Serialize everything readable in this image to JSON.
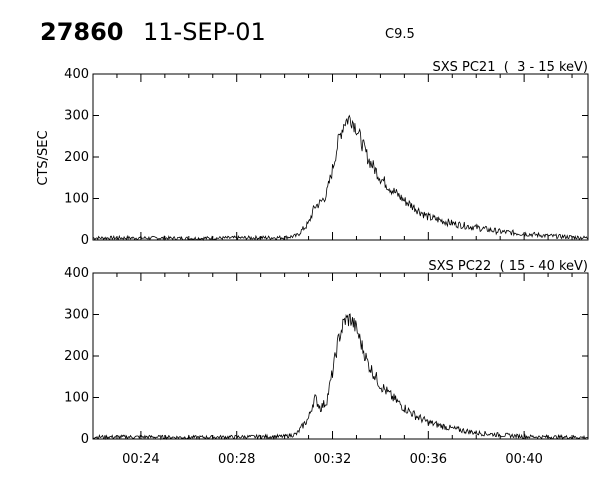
{
  "header": {
    "event_id": "27860",
    "date": "11-SEP-01",
    "goes_class": "C9.5"
  },
  "chart_data": [
    {
      "type": "line",
      "title": "SXS PC21  (  3 - 15 keV)",
      "xlabel": "",
      "ylabel": "CTS/SEC",
      "xlim": [
        "00:22:00",
        "00:42:40"
      ],
      "ylim": [
        0,
        400
      ],
      "yticks": [
        0,
        100,
        200,
        300,
        400
      ],
      "xticks": [
        "00:24",
        "00:28",
        "00:32",
        "00:36",
        "00:40"
      ],
      "series": [
        {
          "x": [
            "00:22:00",
            "00:24:00",
            "00:26:00",
            "00:28:00",
            "00:30:00",
            "00:30:30",
            "00:31:00",
            "00:31:15",
            "00:31:30",
            "00:31:45",
            "00:32:00",
            "00:32:15",
            "00:32:30",
            "00:32:45",
            "00:33:00",
            "00:33:15",
            "00:33:30",
            "00:34:00",
            "00:34:30",
            "00:35:00",
            "00:35:30",
            "00:36:00",
            "00:37:00",
            "00:38:00",
            "00:39:00",
            "00:40:00",
            "00:41:00",
            "00:42:40"
          ],
          "values": [
            5,
            5,
            4,
            5,
            6,
            10,
            40,
            80,
            90,
            110,
            170,
            240,
            285,
            295,
            270,
            230,
            195,
            150,
            120,
            95,
            75,
            55,
            40,
            30,
            20,
            15,
            10,
            5
          ]
        }
      ]
    },
    {
      "type": "line",
      "title": "SXS PC22  ( 15 - 40 keV)",
      "xlabel": "",
      "ylabel": "",
      "xlim": [
        "00:22:00",
        "00:42:40"
      ],
      "ylim": [
        0,
        400
      ],
      "yticks": [
        0,
        100,
        200,
        300,
        400
      ],
      "xticks": [
        "00:24",
        "00:28",
        "00:32",
        "00:36",
        "00:40"
      ],
      "series": [
        {
          "x": [
            "00:22:00",
            "00:24:00",
            "00:26:00",
            "00:28:00",
            "00:30:00",
            "00:30:30",
            "00:31:00",
            "00:31:15",
            "00:31:30",
            "00:31:45",
            "00:32:00",
            "00:32:15",
            "00:32:30",
            "00:32:45",
            "00:33:00",
            "00:33:15",
            "00:33:30",
            "00:34:00",
            "00:34:30",
            "00:35:00",
            "00:35:30",
            "00:36:00",
            "00:37:00",
            "00:38:00",
            "00:39:00",
            "00:40:00",
            "00:41:00",
            "00:42:40"
          ],
          "values": [
            5,
            5,
            4,
            5,
            6,
            12,
            50,
            100,
            75,
            90,
            160,
            240,
            285,
            290,
            265,
            220,
            180,
            130,
            100,
            75,
            55,
            40,
            25,
            15,
            10,
            6,
            5,
            4
          ]
        }
      ]
    }
  ]
}
